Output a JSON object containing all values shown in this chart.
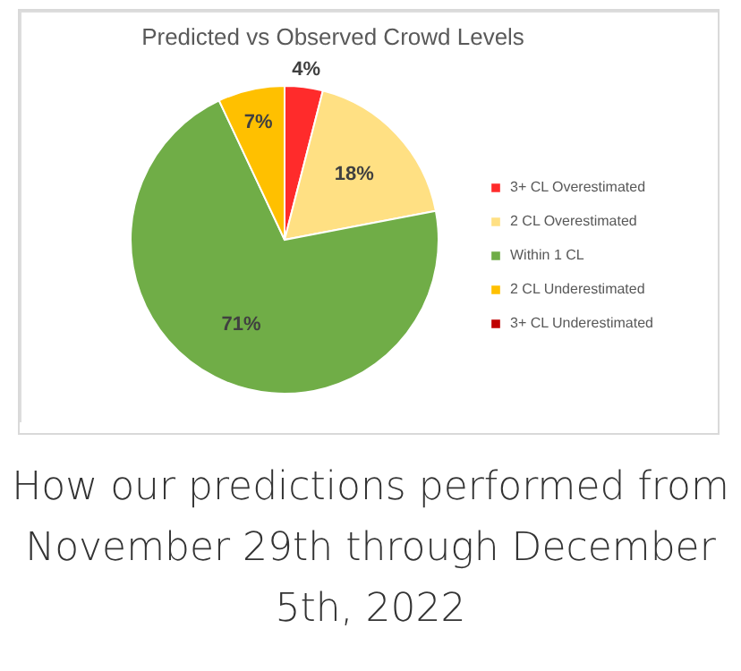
{
  "chart_data": {
    "type": "pie",
    "title": "Predicted vs Observed Crowd Levels",
    "categories": [
      "3+ CL Overestimated",
      "2 CL Overestimated",
      "Within 1 CL",
      "2 CL Underestimated",
      "3+ CL Underestimated"
    ],
    "values": [
      4,
      18,
      71,
      7,
      0
    ],
    "colors": [
      "#ff2b2b",
      "#ffe083",
      "#70ad47",
      "#ffc000",
      "#c00000"
    ],
    "value_labels": [
      "4%",
      "18%",
      "71%",
      "7%",
      null
    ],
    "legend": "right",
    "annotations": [
      "How our predictions performed from November 29th through December 5th, 2022"
    ]
  }
}
